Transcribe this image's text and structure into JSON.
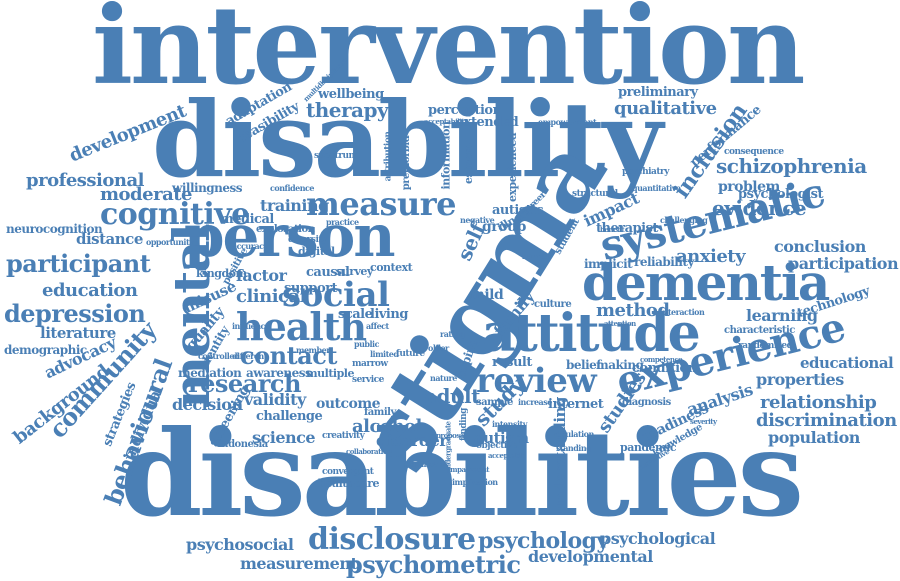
{
  "word_cloud": {
    "color": "#4a7fb5",
    "words": [
      "intervention",
      "disability",
      "disabilities",
      "stigma",
      "person",
      "mental",
      "health",
      "attitude",
      "dementia",
      "experience",
      "systematic",
      "review",
      "social",
      "measure",
      "cognitive",
      "disclosure",
      "psychometric",
      "psychology",
      "contact",
      "research",
      "depression",
      "participant",
      "education",
      "professional",
      "moderate",
      "development",
      "community",
      "behavioural",
      "background",
      "advocacy",
      "literature",
      "demographic",
      "neurocognition",
      "distance",
      "individual",
      "strategies",
      "schizophrenia",
      "inclusion",
      "evidence",
      "anxiety",
      "conclusion",
      "participation",
      "learning",
      "technology",
      "properties",
      "educational",
      "relationship",
      "discrimination",
      "population",
      "analysis",
      "readiness",
      "qualitative",
      "therapy",
      "wellbeing",
      "perception",
      "extended",
      "preliminary",
      "adaptation",
      "feasibility",
      "willingness",
      "training",
      "medical",
      "factor",
      "clinical",
      "misuse",
      "quality",
      "identity",
      "mediation",
      "awareness",
      "validity",
      "decision",
      "challenge",
      "screening",
      "science",
      "outcome",
      "adult",
      "study",
      "alcohol",
      "disorder",
      "autism",
      "understanding",
      "internet",
      "studies",
      "method",
      "impact",
      "family",
      "self",
      "group",
      "autistic",
      "therapist",
      "problem",
      "psychologist",
      "support",
      "scale",
      "living",
      "result",
      "belief",
      "making",
      "coping",
      "condition",
      "psychosocial",
      "measurement",
      "developmental",
      "psychological",
      "healthcare",
      "reliability",
      "implicit",
      "performance",
      "consequence",
      "psychiatry",
      "characteristic",
      "randomised",
      "diagnosis",
      "pandemic",
      "knowledge",
      "indonesia",
      "creativity",
      "exploration",
      "multiple",
      "kingdom",
      "digital",
      "causal",
      "survey",
      "context",
      "mild",
      "information",
      "esteem",
      "experienced",
      "illness",
      "student",
      "culture",
      "structural",
      "empowerment",
      "premorbid",
      "attribution",
      "spectrum",
      "confidence",
      "diversity",
      "accuracy",
      "opportunity",
      "family",
      "sample",
      "intensity",
      "objective",
      "regulation",
      "significant",
      "convergent",
      "implication",
      "marrow",
      "service",
      "interaction",
      "member",
      "limited",
      "public",
      "affect",
      "future",
      "older",
      "rating",
      "increase",
      "finding",
      "barrier",
      "nature",
      "positive",
      "negative",
      "practice",
      "acceptability",
      "challenging",
      "quantitative",
      "multidisciplinary",
      "standing",
      "undergraduate",
      "collaboration",
      "proposal",
      "impairment",
      "career",
      "acceptable",
      "influence",
      "controlled",
      "different",
      "subjective",
      "competence",
      "attention",
      "benefit",
      "severity"
    ]
  }
}
